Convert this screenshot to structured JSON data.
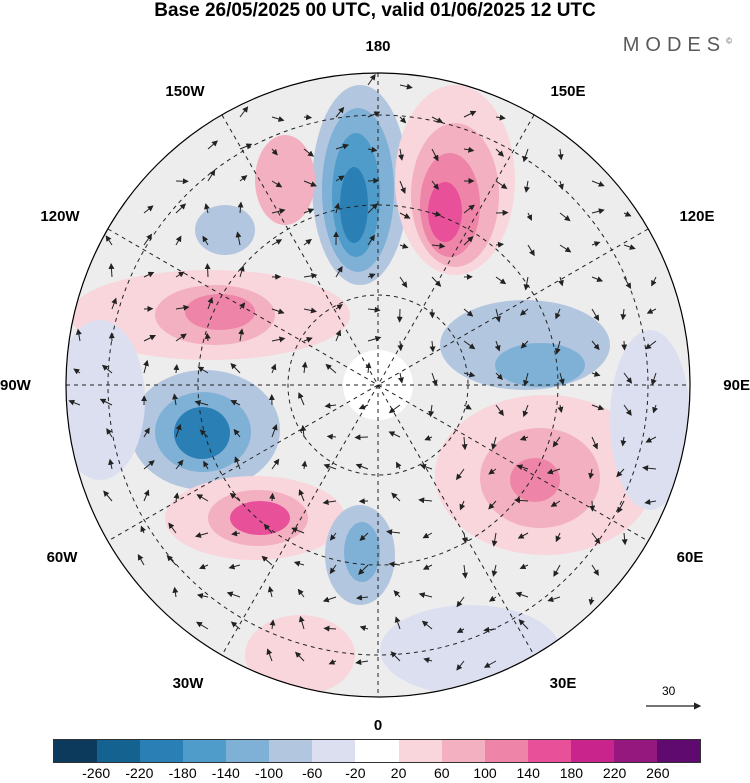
{
  "title": "Base 26/05/2025 00 UTC, valid 01/06/2025 12 UTC",
  "brand": "MODES",
  "brand_mark": "©",
  "map": {
    "lon_labels": {
      "top": "180",
      "bottom": "0",
      "left": "90W",
      "right": "90E",
      "upper_left": "150W",
      "upper_right": "150E",
      "mid_upper_left": "120W",
      "mid_upper_right": "120E",
      "mid_lower_left": "60W",
      "mid_lower_right": "60E",
      "lower_left": "30W",
      "lower_right": "30E"
    },
    "reference_vector_label": "30"
  },
  "colorbar": {
    "colors": [
      "#0b3a5c",
      "#14628f",
      "#2a7fb5",
      "#4f9bc9",
      "#7fb0d6",
      "#b3c6e0",
      "#dcdff0",
      "#ffffff",
      "#f9d5dc",
      "#f3b0c0",
      "#ee84a7",
      "#e8509a",
      "#c9238c",
      "#95187f",
      "#5e0a6e"
    ],
    "tick_labels": [
      "-260",
      "-220",
      "-180",
      "-140",
      "-100",
      "-60",
      "-20",
      "20",
      "60",
      "100",
      "140",
      "180",
      "220",
      "260"
    ]
  }
}
